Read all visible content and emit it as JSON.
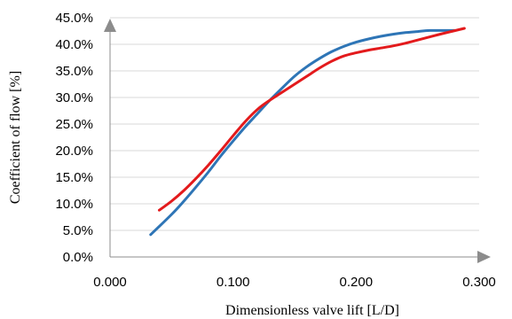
{
  "chart_data": {
    "type": "line",
    "title": "",
    "xlabel": "Dimensionless valve lift [L/D]",
    "ylabel": "Coefficient of flow [%]",
    "xlim": [
      0,
      0.3
    ],
    "ylim": [
      0,
      45
    ],
    "x_ticks": [
      0,
      0.1,
      0.2,
      0.3
    ],
    "x_tick_labels": [
      "0.000",
      "0.100",
      "0.200",
      "0.300"
    ],
    "y_ticks": [
      0,
      5,
      10,
      15,
      20,
      25,
      30,
      35,
      40,
      45
    ],
    "y_tick_labels": [
      "0.0%",
      "5.0%",
      "10.0%",
      "15.0%",
      "20.0%",
      "25.0%",
      "30.0%",
      "35.0%",
      "40.0%",
      "45.0%"
    ],
    "grid": "horizontal",
    "legend": "none",
    "series": [
      {
        "color": "#2e75b6",
        "points": [
          [
            0.033,
            4.2
          ],
          [
            0.05,
            8.0
          ],
          [
            0.06,
            10.5
          ],
          [
            0.07,
            13.2
          ],
          [
            0.08,
            16.0
          ],
          [
            0.09,
            19.0
          ],
          [
            0.1,
            21.8
          ],
          [
            0.11,
            24.5
          ],
          [
            0.12,
            27.0
          ],
          [
            0.13,
            29.5
          ],
          [
            0.14,
            31.8
          ],
          [
            0.15,
            34.0
          ],
          [
            0.16,
            35.8
          ],
          [
            0.17,
            37.3
          ],
          [
            0.18,
            38.6
          ],
          [
            0.19,
            39.6
          ],
          [
            0.2,
            40.4
          ],
          [
            0.21,
            41.0
          ],
          [
            0.22,
            41.5
          ],
          [
            0.23,
            41.9
          ],
          [
            0.24,
            42.2
          ],
          [
            0.25,
            42.4
          ],
          [
            0.26,
            42.6
          ],
          [
            0.28,
            42.6
          ]
        ]
      },
      {
        "color": "#e31a1c",
        "points": [
          [
            0.04,
            8.8
          ],
          [
            0.05,
            10.5
          ],
          [
            0.06,
            12.5
          ],
          [
            0.07,
            14.8
          ],
          [
            0.08,
            17.3
          ],
          [
            0.09,
            20.0
          ],
          [
            0.1,
            22.8
          ],
          [
            0.11,
            25.5
          ],
          [
            0.12,
            27.8
          ],
          [
            0.13,
            29.5
          ],
          [
            0.14,
            31.0
          ],
          [
            0.15,
            32.5
          ],
          [
            0.16,
            34.0
          ],
          [
            0.17,
            35.5
          ],
          [
            0.18,
            36.8
          ],
          [
            0.19,
            37.8
          ],
          [
            0.2,
            38.4
          ],
          [
            0.21,
            38.9
          ],
          [
            0.22,
            39.3
          ],
          [
            0.23,
            39.7
          ],
          [
            0.24,
            40.2
          ],
          [
            0.25,
            40.8
          ],
          [
            0.26,
            41.4
          ],
          [
            0.27,
            42.0
          ],
          [
            0.288,
            43.0
          ]
        ]
      }
    ]
  }
}
